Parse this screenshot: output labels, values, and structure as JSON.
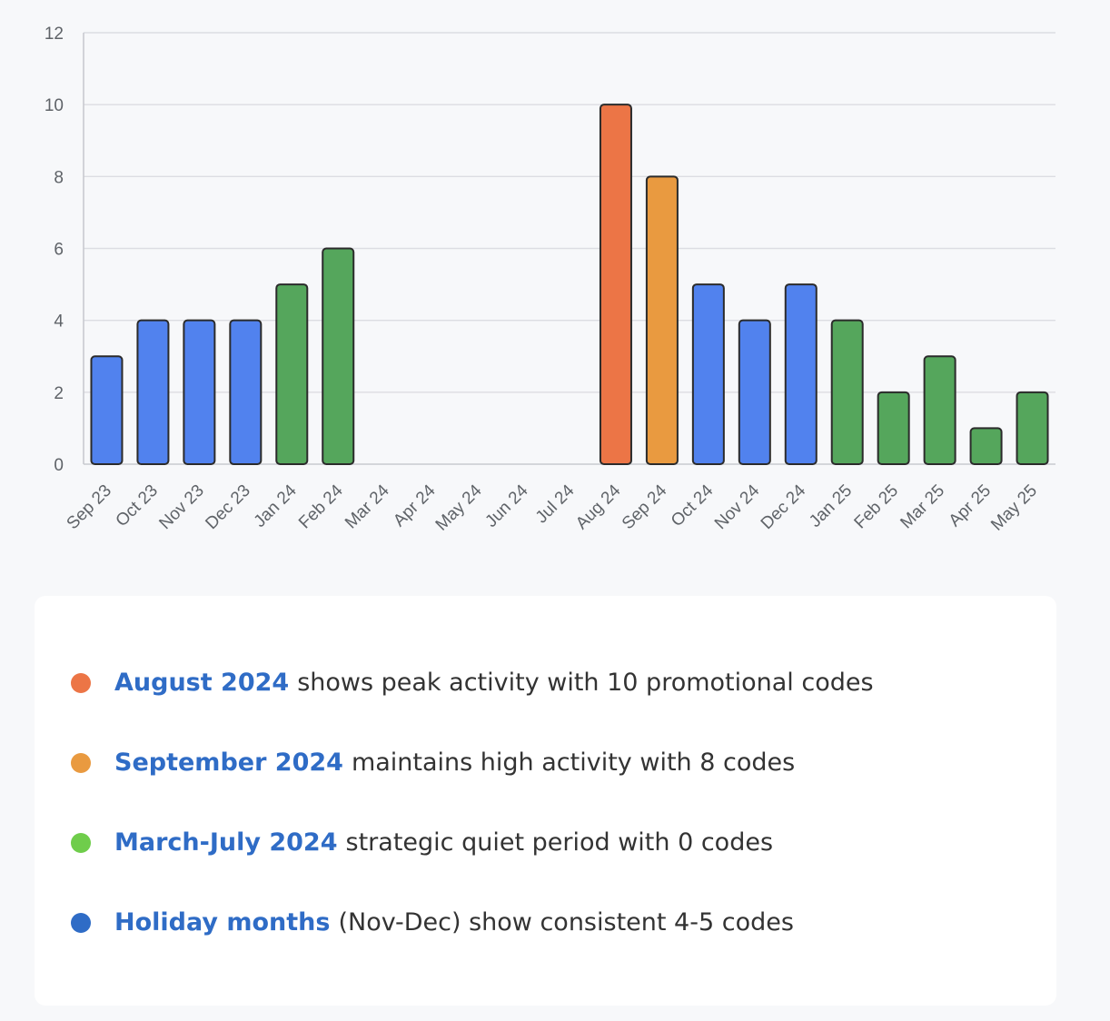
{
  "chart_data": {
    "type": "bar",
    "categories": [
      "Sep 23",
      "Oct 23",
      "Nov 23",
      "Dec 23",
      "Jan 24",
      "Feb 24",
      "Mar 24",
      "Apr 24",
      "May 24",
      "Jun 24",
      "Jul 24",
      "Aug 24",
      "Sep 24",
      "Oct 24",
      "Nov 24",
      "Dec 24",
      "Jan 25",
      "Feb 25",
      "Mar 25",
      "Apr 25",
      "May 25"
    ],
    "values": [
      3,
      4,
      4,
      4,
      5,
      6,
      0,
      0,
      0,
      0,
      0,
      10,
      8,
      5,
      4,
      5,
      4,
      2,
      3,
      1,
      2
    ],
    "bar_colors": [
      "#5182ee",
      "#5182ee",
      "#5182ee",
      "#5182ee",
      "#55a65c",
      "#55a65c",
      "#55a65c",
      "#55a65c",
      "#55a65c",
      "#55a65c",
      "#55a65c",
      "#ec7546",
      "#e99a40",
      "#5182ee",
      "#5182ee",
      "#5182ee",
      "#55a65c",
      "#55a65c",
      "#55a65c",
      "#55a65c",
      "#55a65c"
    ],
    "ylim": [
      0,
      12
    ],
    "yticks": [
      0,
      2,
      4,
      6,
      8,
      10,
      12
    ],
    "grid": true,
    "title": "",
    "xlabel": "",
    "ylabel": ""
  },
  "insights": [
    {
      "highlight": "August 2024",
      "text": "shows peak activity with 10 promotional codes",
      "dot_color": "#ec7546"
    },
    {
      "highlight": "September 2024",
      "text": "maintains high activity with 8 codes",
      "dot_color": "#e99a40"
    },
    {
      "highlight": "March-July 2024",
      "text": "strategic quiet period with 0 codes",
      "dot_color": "#6fcd4b"
    },
    {
      "highlight": "Holiday months",
      "text": "(Nov-Dec) show consistent 4-5 codes",
      "dot_color": "#2f6cc6"
    }
  ]
}
